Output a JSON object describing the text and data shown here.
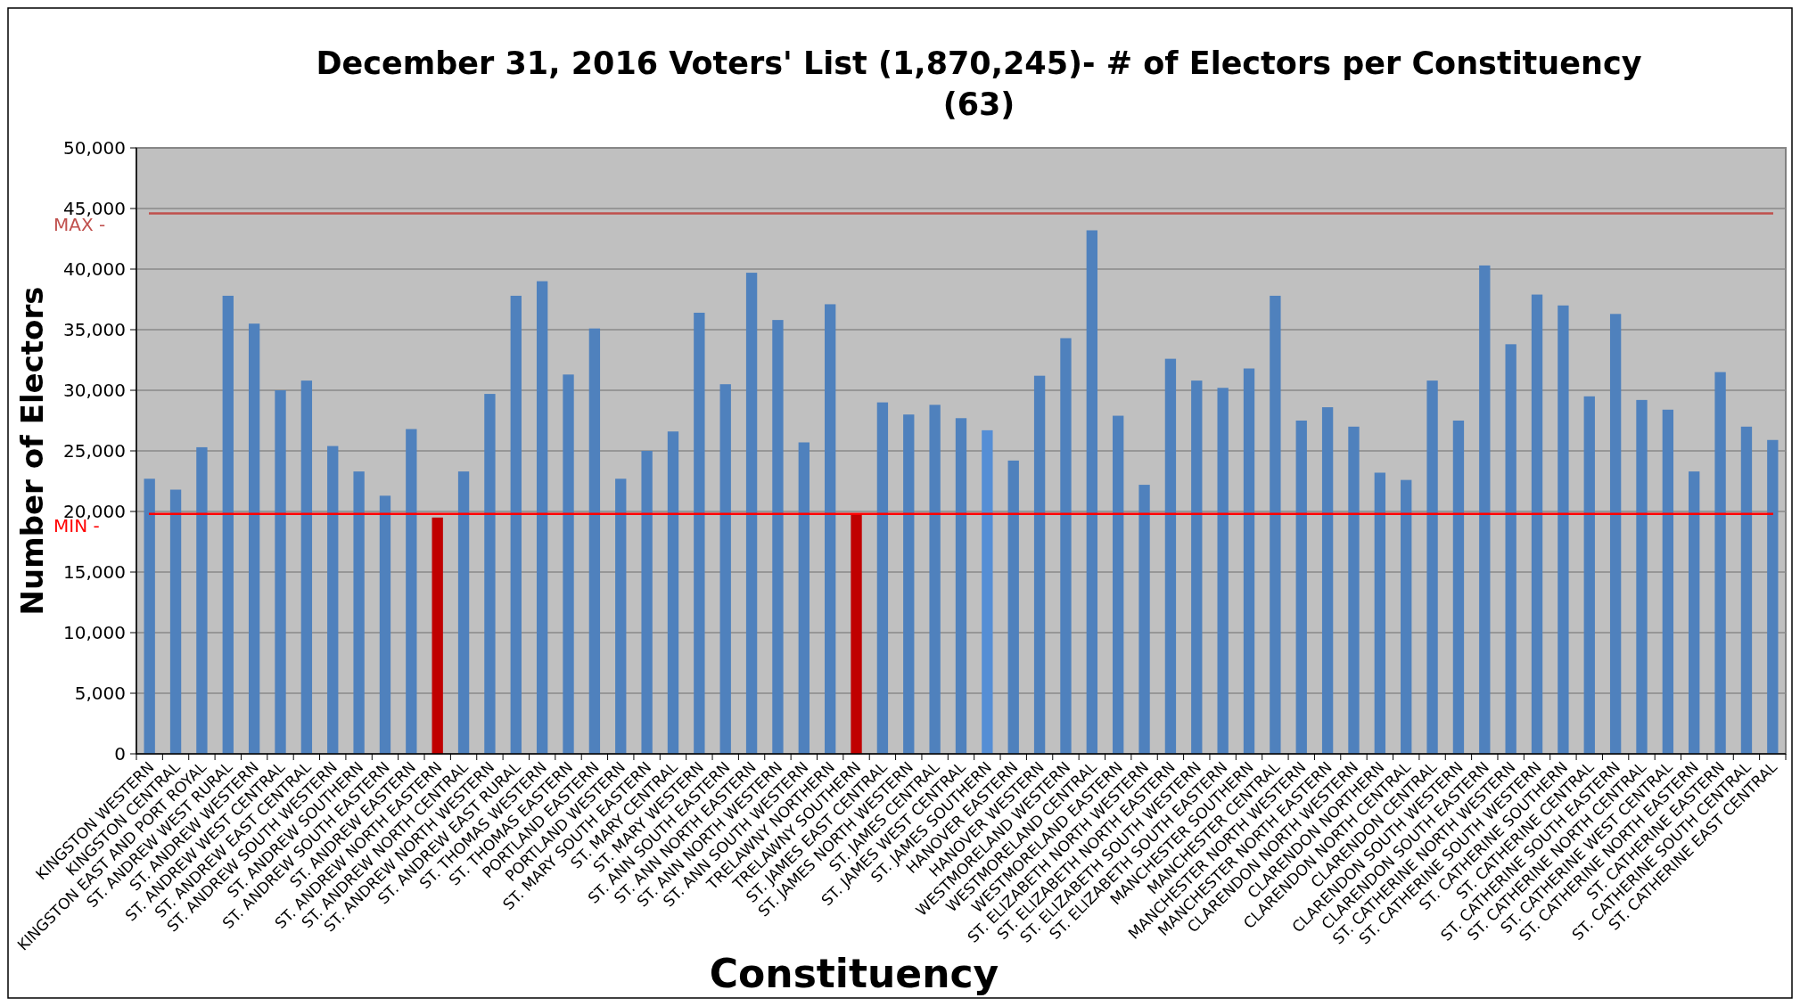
{
  "chart_data": {
    "type": "bar",
    "title": "December 31, 2016 Voters' List (1,870,245)- # of Electors per Constituency (63)",
    "xlabel": "Constituency",
    "ylabel": "Number of Electors",
    "categories": [
      "KINGSTON WESTERN",
      "KINGSTON CENTRAL",
      "KINGSTON EAST AND PORT ROYAL",
      "ST. ANDREW WEST RURAL",
      "ST. ANDREW WESTERN",
      "ST. ANDREW WEST CENTRAL",
      "ST. ANDREW EAST CENTRAL",
      "ST. ANDREW SOUTH WESTERN",
      "ST. ANDREW SOUTHERN",
      "ST. ANDREW SOUTH EASTERN",
      "ST. ANDREW EASTERN",
      "ST. ANDREW NORTH EASTERN",
      "ST. ANDREW NORTH CENTRAL",
      "ST. ANDREW NORTH WESTERN",
      "ST. ANDREW EAST RURAL",
      "ST. THOMAS WESTERN",
      "ST. THOMAS EASTERN",
      "PORTLAND EASTERN",
      "PORTLAND WESTERN",
      "ST. MARY SOUTH EASTERN",
      "ST. MARY CENTRAL",
      "ST. MARY WESTERN",
      "ST. ANN SOUTH EASTERN",
      "ST. ANN NORTH EASTERN",
      "ST. ANN NORTH WESTERN",
      "ST. ANN SOUTH WESTERN",
      "TRELAWNY NORTHERN",
      "TRELAWNY SOUTHERN",
      "ST. JAMES EAST CENTRAL",
      "ST. JAMES NORTH WESTERN",
      "ST. JAMES CENTRAL",
      "ST. JAMES WEST CENTRAL",
      "ST. JAMES SOUTHERN",
      "HANOVER EASTERN",
      "HANOVER WESTERN",
      "WESTMORELAND WESTERN",
      "WESTMORELAND CENTRAL",
      "WESTMORELAND EASTERN",
      "ST. ELIZABETH NORTH WESTERN",
      "ST. ELIZABETH NORTH EASTERN",
      "ST. ELIZABETH SOUTH WESTERN",
      "ST. ELIZABETH SOUTH EASTERN",
      "MANCHESTER SOUTHERN",
      "MANCHESTER CENTRAL",
      "MANCHESTER NORTH WESTERN",
      "MANCHESTER NORTH EASTERN",
      "CLARENDON NORTH WESTERN",
      "CLARENDON NORTHERN",
      "CLARENDON NORTH CENTRAL",
      "CLARENDON CENTRAL",
      "CLARENDON SOUTH WESTERN",
      "CLARENDON SOUTH EASTERN",
      "ST. CATHERINE NORTH WESTERN",
      "ST. CATHERINE SOUTH WESTERN",
      "ST. CATHERINE SOUTHERN",
      "ST. CATHERINE CENTRAL",
      "ST. CATHERINE SOUTH EASTERN",
      "ST. CATHERINE NORTH CENTRAL",
      "ST. CATHERINE WEST CENTRAL",
      "ST. CATHERINE NORTH EASTERN",
      "ST. CATHERINE EASTERN",
      "ST. CATHERINE SOUTH CENTRAL",
      "ST. CATHERINE EAST CENTRAL"
    ],
    "values": [
      22700,
      21800,
      25300,
      37800,
      35500,
      30000,
      30800,
      25400,
      23300,
      21300,
      26800,
      19500,
      23300,
      29700,
      37800,
      39000,
      31300,
      35100,
      22700,
      25000,
      26600,
      36400,
      30500,
      39700,
      35800,
      25700,
      37100,
      19800,
      29000,
      28000,
      28800,
      27700,
      26700,
      24200,
      31200,
      34300,
      43200,
      27900,
      22200,
      32600,
      30800,
      30200,
      31800,
      37800,
      27500,
      28600,
      27000,
      23200,
      22600,
      30800,
      27500,
      40300,
      33800,
      37900,
      37000,
      29500,
      36300,
      29200,
      28400,
      23300,
      31500,
      27000,
      25900
    ],
    "colors": [
      "#4f81bd",
      "#4f81bd",
      "#4f81bd",
      "#4f81bd",
      "#4f81bd",
      "#4f81bd",
      "#4f81bd",
      "#4f81bd",
      "#4f81bd",
      "#4f81bd",
      "#4f81bd",
      "#c00000",
      "#4f81bd",
      "#4f81bd",
      "#4f81bd",
      "#4f81bd",
      "#4f81bd",
      "#4f81bd",
      "#4f81bd",
      "#4f81bd",
      "#4f81bd",
      "#4f81bd",
      "#4f81bd",
      "#4f81bd",
      "#4f81bd",
      "#4f81bd",
      "#4f81bd",
      "#c00000",
      "#4f81bd",
      "#4f81bd",
      "#4f81bd",
      "#4f81bd",
      "#558ed5",
      "#4f81bd",
      "#4f81bd",
      "#4f81bd",
      "#4f81bd",
      "#4f81bd",
      "#4f81bd",
      "#4f81bd",
      "#4f81bd",
      "#4f81bd",
      "#4f81bd",
      "#4f81bd",
      "#4f81bd",
      "#4f81bd",
      "#4f81bd",
      "#4f81bd",
      "#4f81bd",
      "#4f81bd",
      "#4f81bd",
      "#4f81bd",
      "#4f81bd",
      "#4f81bd",
      "#4f81bd",
      "#4f81bd",
      "#4f81bd",
      "#4f81bd",
      "#4f81bd",
      "#4f81bd",
      "#4f81bd",
      "#4f81bd",
      "#4f81bd"
    ],
    "ylim": [
      0,
      50000
    ],
    "yticks": [
      {
        "value": 0,
        "label": "0"
      },
      {
        "value": 5000,
        "label": "5,000"
      },
      {
        "value": 10000,
        "label": "10,000"
      },
      {
        "value": 15000,
        "label": "15,000"
      },
      {
        "value": 20000,
        "label": "20,000"
      },
      {
        "value": 25000,
        "label": "25,000"
      },
      {
        "value": 30000,
        "label": "30,000"
      },
      {
        "value": 35000,
        "label": "35,000"
      },
      {
        "value": 40000,
        "label": "40,000"
      },
      {
        "value": 45000,
        "label": "45,000"
      },
      {
        "value": 50000,
        "label": "50,000"
      }
    ],
    "grid": "y",
    "ref_lines": [
      {
        "axis": "y",
        "value": 44600,
        "label": "MAX -",
        "color": "#c0504d"
      },
      {
        "axis": "y",
        "value": 19800,
        "label": "MIN -",
        "color": "#ff0000"
      }
    ]
  }
}
